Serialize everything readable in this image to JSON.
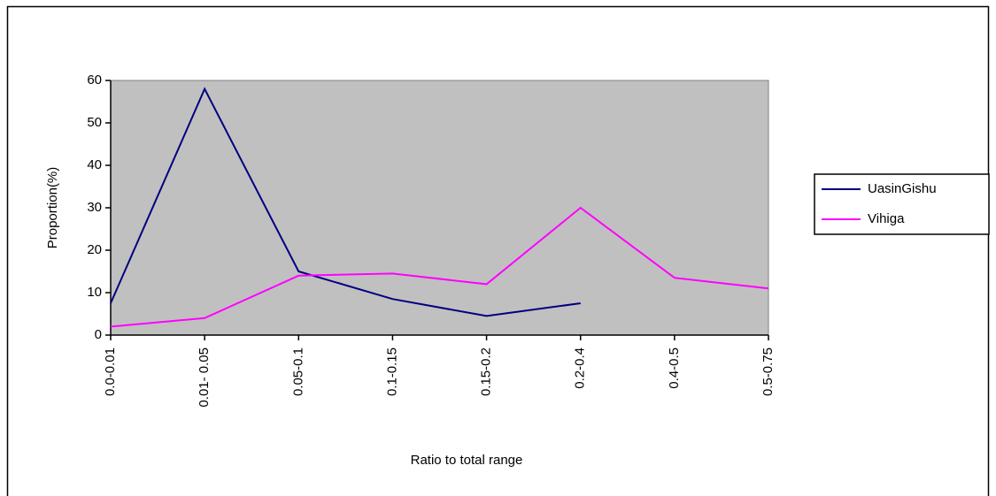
{
  "chart_data": {
    "type": "line",
    "x_label": "Ratio to total range",
    "y_label": "Proportion(%)",
    "categories": [
      "0.0-0.01",
      "0.01- 0.05",
      "0.05-0.1",
      "0.1-0.15",
      "0.15-0.2",
      "0.2-0.4",
      "0.4-0.5",
      "0.5-0.75"
    ],
    "series": [
      {
        "name": "UasinGishu",
        "color": "#000080",
        "values": [
          7.5,
          58,
          15,
          8.5,
          4.5,
          7.5,
          null,
          null
        ]
      },
      {
        "name": "Vihiga",
        "color": "#ff00ff",
        "values": [
          2,
          4,
          14,
          14.5,
          12,
          30,
          13.5,
          11
        ]
      }
    ],
    "ylim": [
      0,
      60
    ],
    "yticks": [
      0,
      10,
      20,
      30,
      40,
      50,
      60
    ],
    "plot_background": "#c0c0c0",
    "grid": false,
    "legend": "right"
  }
}
